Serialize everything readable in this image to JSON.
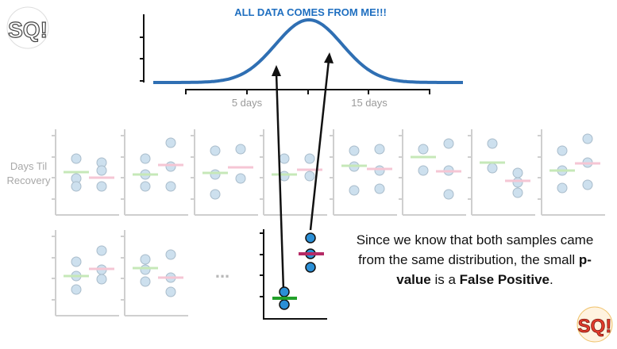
{
  "title": "ALL DATA COMES FROM ME!!!",
  "x_axis": {
    "tick_labels": [
      "5 days",
      "15 days"
    ]
  },
  "y_axis_label_lines": [
    "Days Til",
    "Recovery"
  ],
  "ellipsis": "...",
  "caption": {
    "part1": "Since we know that both samples came from the same distribution, the small ",
    "bold1": "p-value",
    "part2": " is a ",
    "bold2": "False Positive",
    "part3": "."
  },
  "logo_text": "SQ!",
  "logo_text_top": "SQ!",
  "colors": {
    "curve": "#2f6fb3",
    "title": "#1f6fc0",
    "faded_point": "#cde0ee",
    "faded_green": "#c6e8b8",
    "faded_pink": "#f5c6d4",
    "highlight_point": "#2b8fd6",
    "highlight_green": "#22a02a",
    "highlight_pink": "#b52a66"
  }
}
